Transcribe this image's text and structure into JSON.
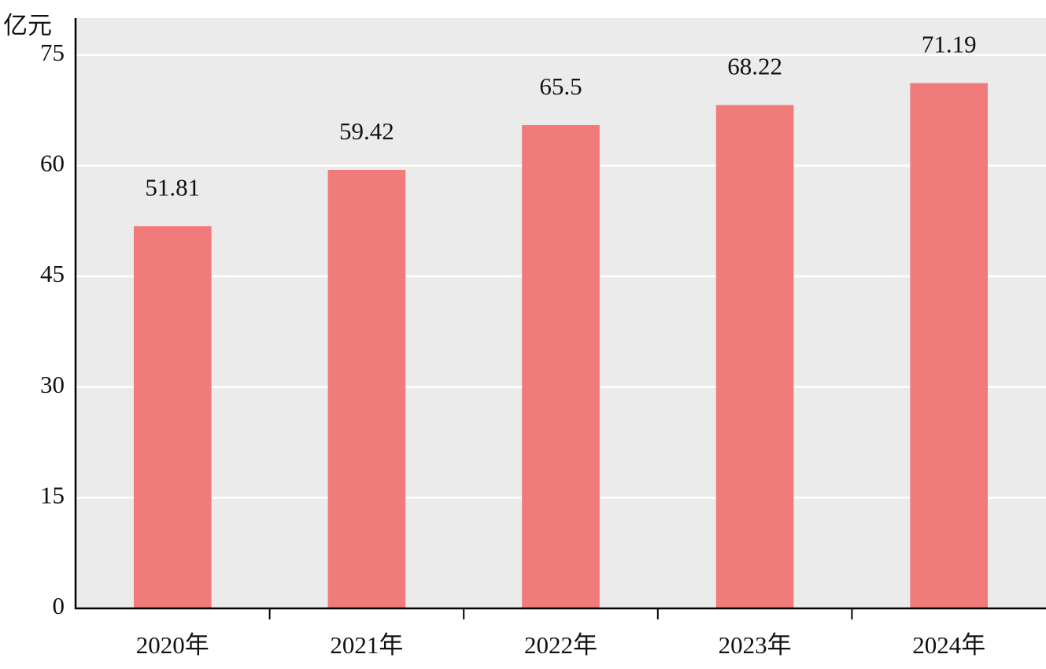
{
  "chart_data": {
    "type": "bar",
    "y_label": "亿元",
    "categories": [
      "2020年",
      "2021年",
      "2022年",
      "2023年",
      "2024年"
    ],
    "values": [
      51.81,
      59.42,
      65.5,
      68.22,
      71.19
    ],
    "color": "#f07b7a",
    "ylim": [
      0,
      80
    ],
    "yticks": [
      0,
      15,
      30,
      45,
      60,
      75
    ],
    "grid": true
  }
}
